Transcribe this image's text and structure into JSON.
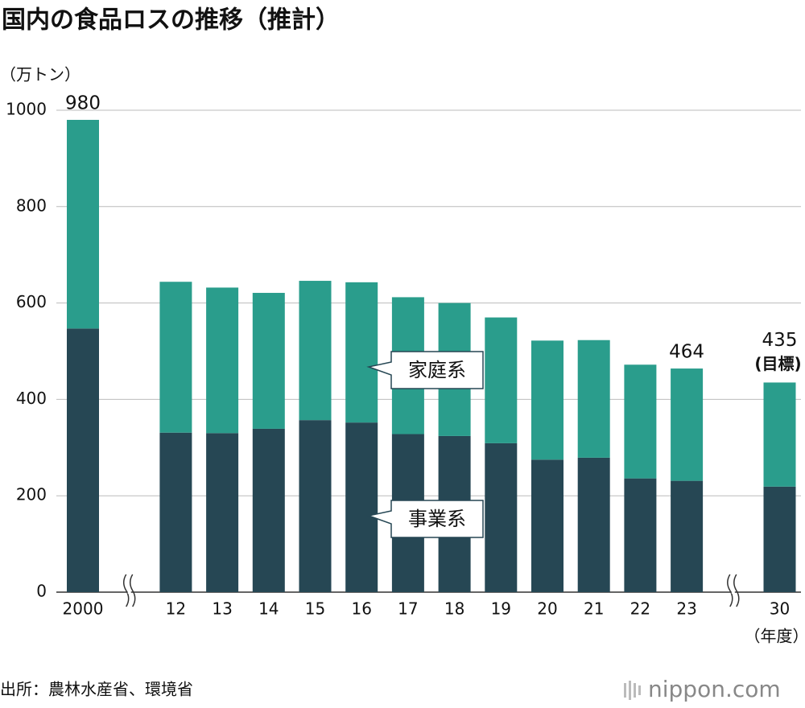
{
  "chart_data": {
    "type": "stacked_bar",
    "title": "国内の食品ロスの推移（推計）",
    "y_label": "（万トン）",
    "x_label": "（年度）",
    "source": "出所：農林水産省、環境省",
    "logo": "nippon.com",
    "categories": [
      "2000",
      null,
      "12",
      "13",
      "14",
      "15",
      "16",
      "17",
      "18",
      "19",
      "20",
      "21",
      "22",
      "23",
      null,
      "30"
    ],
    "series": [
      {
        "name": "事業系",
        "color": "#264754",
        "values": [
          547,
          null,
          331,
          330,
          339,
          357,
          352,
          328,
          324,
          309,
          275,
          279,
          236,
          231,
          null,
          219
        ]
      },
      {
        "name": "家庭系",
        "color": "#2a9d8c",
        "values": [
          433,
          null,
          313,
          302,
          282,
          289,
          291,
          284,
          276,
          261,
          247,
          244,
          236,
          233,
          null,
          216
        ]
      }
    ],
    "annotations": [
      {
        "category": "2000",
        "text": "980"
      },
      {
        "category": "23",
        "text": "464"
      },
      {
        "category": "30",
        "text": "435",
        "subtext": "(目標)"
      }
    ],
    "ylim": [
      0,
      1000
    ],
    "yticks": [
      0,
      200,
      400,
      600,
      800,
      1000
    ],
    "grid": true
  }
}
